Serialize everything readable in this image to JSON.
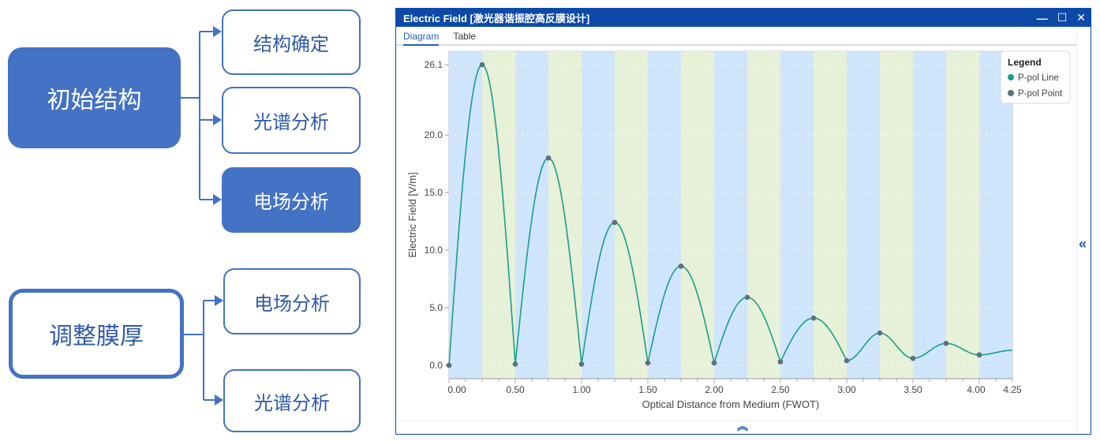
{
  "flow": {
    "group1": {
      "root": "初始结构",
      "children": [
        "结构确定",
        "光谱分析",
        "电场分析"
      ]
    },
    "group2": {
      "root": "调整膜厚",
      "children": [
        "电场分析",
        "光谱分析"
      ]
    }
  },
  "window": {
    "title": "Electric Field [激光器谐振腔高反膜设计]",
    "tabs": [
      "Diagram",
      "Table"
    ],
    "active_tab": "Diagram",
    "controls": {
      "minimize": "—",
      "maximize": "☐",
      "close": "✕"
    },
    "side_toggle": "«",
    "bottom_toggle": "︽"
  },
  "colors": {
    "accent": "#4472c4",
    "title_bar": "#0d4aa8",
    "line": "#1a9e8a",
    "point": "#5c7080",
    "band_blue": "#cfe5fb",
    "band_green": "#e6f1d8"
  },
  "chart_data": {
    "type": "line",
    "xlabel": "Optical Distance from Medium (FWOT)",
    "ylabel": "Electric Field [V/m]",
    "xlim": [
      0,
      4.25
    ],
    "ylim": [
      0,
      26.1
    ],
    "x_ticks": [
      "0.00",
      "0.50",
      "1.00",
      "1.50",
      "2.00",
      "2.50",
      "3.00",
      "3.50",
      "4.00",
      "4.25"
    ],
    "x_tick_values": [
      0,
      0.5,
      1,
      1.5,
      2,
      2.5,
      3,
      3.5,
      4,
      4.25
    ],
    "y_ticks": [
      "0.0",
      "5.0",
      "10.0",
      "15.0",
      "20.0",
      "26.1"
    ],
    "y_tick_values": [
      0,
      5,
      10,
      15,
      20,
      26.1
    ],
    "legend": {
      "title": "Legend",
      "entries": [
        "P-pol Line",
        "P-pol Point"
      ],
      "position": "top-right"
    },
    "band_width": 0.25,
    "points": [
      [
        0,
        0
      ],
      [
        0.25,
        26.1
      ],
      [
        0.5,
        0.1
      ],
      [
        0.75,
        18.0
      ],
      [
        1.0,
        0.1
      ],
      [
        1.25,
        12.4
      ],
      [
        1.5,
        0.2
      ],
      [
        1.75,
        8.6
      ],
      [
        2.0,
        0.2
      ],
      [
        2.25,
        5.9
      ],
      [
        2.5,
        0.3
      ],
      [
        2.75,
        4.1
      ],
      [
        3.0,
        0.4
      ],
      [
        3.25,
        2.8
      ],
      [
        3.5,
        0.6
      ],
      [
        3.75,
        1.9
      ],
      [
        4.0,
        0.9
      ]
    ],
    "line_end": [
      4.25,
      1.3
    ]
  }
}
